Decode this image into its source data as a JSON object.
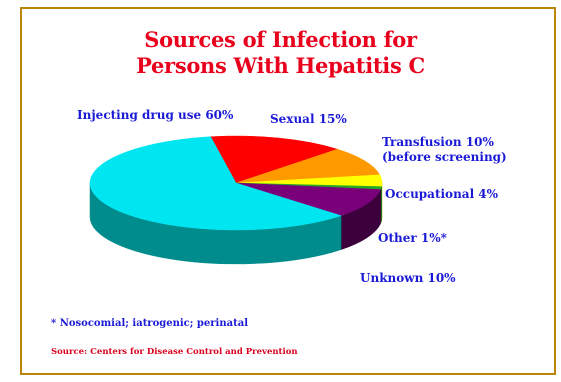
{
  "title_line1": "Sources of Infection for",
  "title_line2": "Persons With Hepatitis C",
  "footnote": "* Nosocomial; iatrogenic; perinatal",
  "source": "Source: Centers for Disease Control and Prevention",
  "chart_data": {
    "type": "pie",
    "style": "3d",
    "slices": [
      {
        "label": "Injecting drug use 60%",
        "value": 60,
        "color": "#00e6f0",
        "side": "#008c8c"
      },
      {
        "label": "Sexual 15%",
        "value": 15,
        "color": "#ff0000",
        "side": "#a00000"
      },
      {
        "label": "Transfusion 10% (before screening)",
        "label_line1": "Transfusion 10%",
        "label_line2": "(before screening)",
        "value": 10,
        "color": "#ff9900",
        "side": "#b06400"
      },
      {
        "label": "Occupational 4%",
        "value": 4,
        "color": "#ffff00",
        "side": "#b0b000"
      },
      {
        "label": "Other 1%*",
        "value": 1,
        "color": "#22aa22",
        "side": "#116611"
      },
      {
        "label": "Unknown 10%",
        "value": 10,
        "color": "#7a007a",
        "side": "#3c003c"
      }
    ],
    "label_color": "#1a1ad6"
  }
}
